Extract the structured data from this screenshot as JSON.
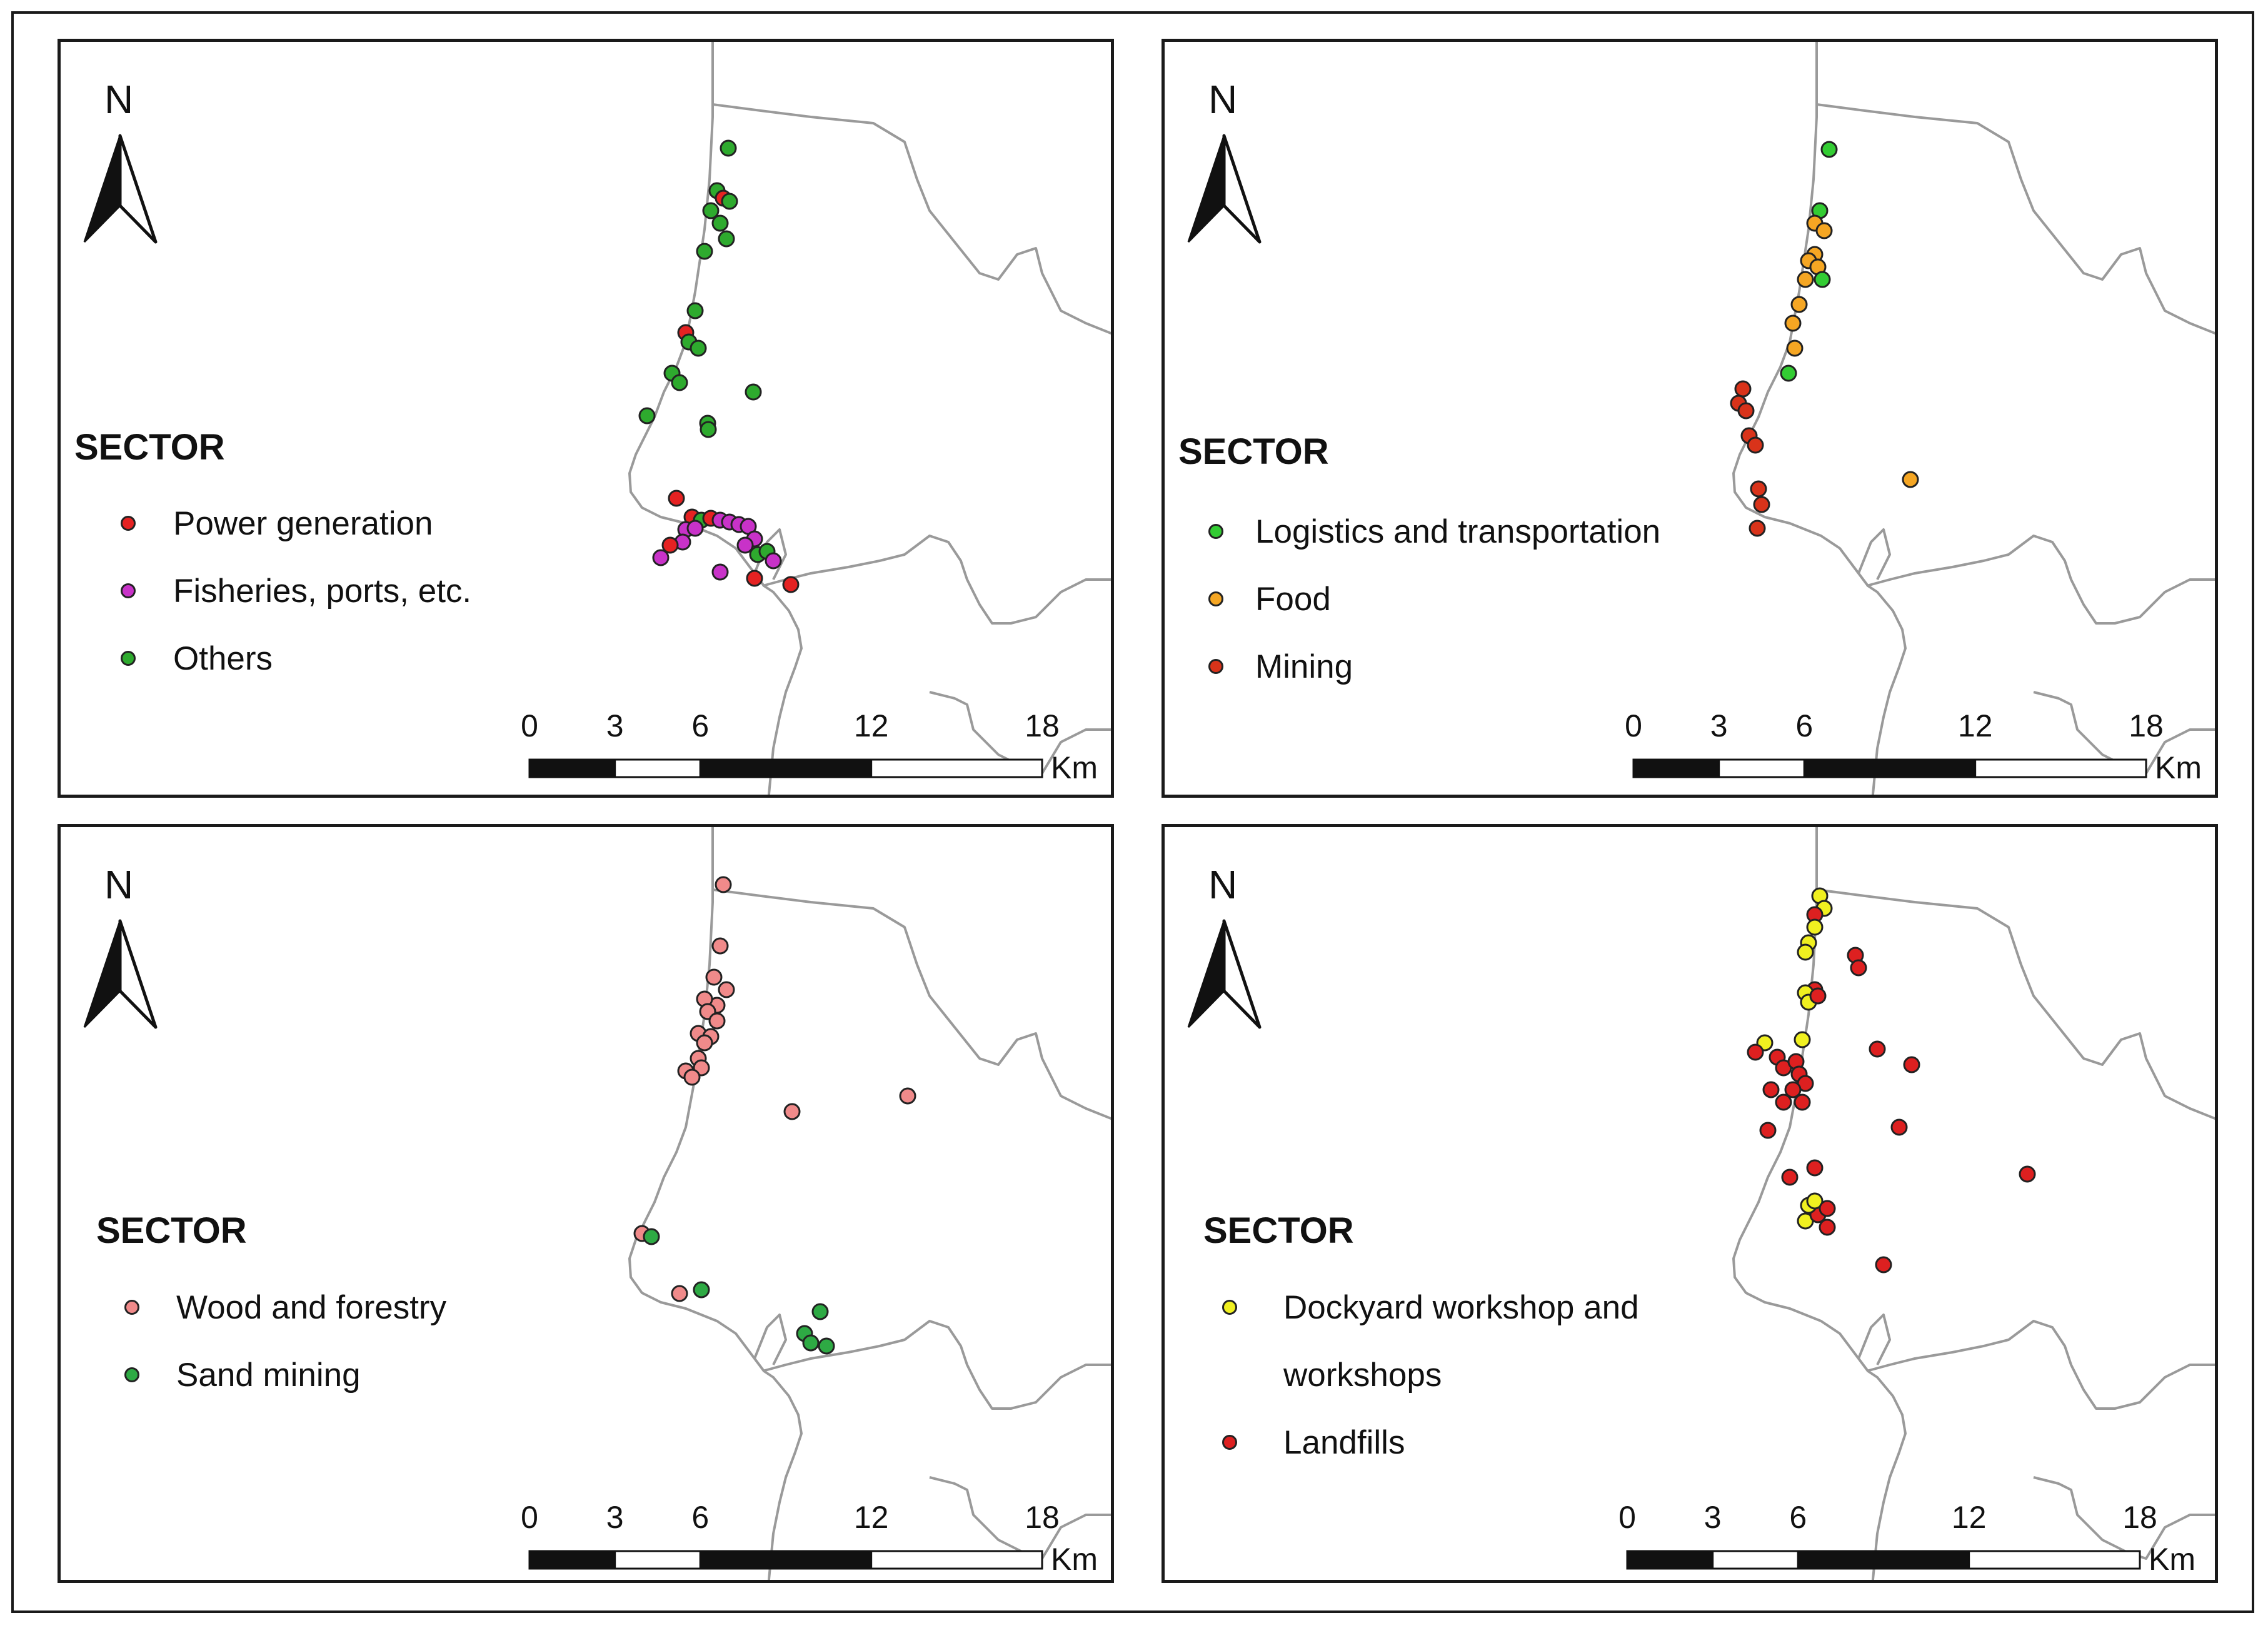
{
  "north_label": "N",
  "legend_title": "SECTOR",
  "scale": {
    "ticks": [
      "0",
      "3",
      "6",
      "12",
      "18"
    ],
    "unit": "Km"
  },
  "panels": [
    {
      "id": "top-left",
      "legend": [
        {
          "label": "Power generation",
          "color": "#e52222"
        },
        {
          "label": "Fisheries, ports, etc.",
          "color": "#c832c8"
        },
        {
          "label": "Others",
          "color": "#2eaa2e"
        }
      ]
    },
    {
      "id": "top-right",
      "legend": [
        {
          "label": "Logistics and transportation",
          "color": "#33cc33"
        },
        {
          "label": "Food",
          "color": "#f5a623"
        },
        {
          "label": "Mining",
          "color": "#d9331a"
        }
      ]
    },
    {
      "id": "bottom-left",
      "legend": [
        {
          "label": "Wood and forestry",
          "color": "#f08a8a"
        },
        {
          "label": "Sand mining",
          "color": "#2eaa44"
        }
      ]
    },
    {
      "id": "bottom-right",
      "legend": [
        {
          "label": "Dockyard workshop and",
          "label2": "workshops",
          "color": "#f0f020"
        },
        {
          "label": "Landfills",
          "color": "#dd2020"
        }
      ]
    }
  ]
}
